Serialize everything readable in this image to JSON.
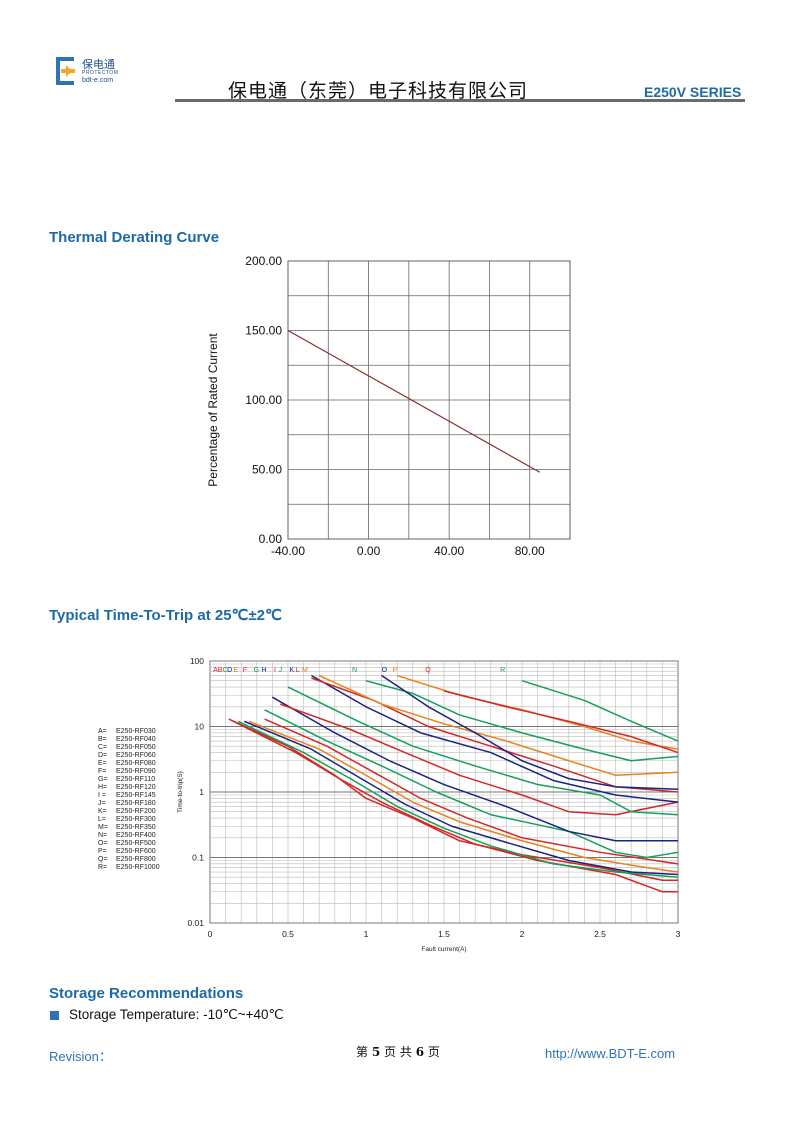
{
  "header": {
    "logo_cn": "保电通",
    "logo_en1": "PROTECTOM",
    "logo_en2": "bdt-e.com",
    "company": "保电通（东莞）电子科技有限公司",
    "series": "E250V SERIES",
    "accent_color": "#1d6aa5"
  },
  "sections": {
    "thermal_title": "Thermal Derating Curve",
    "trip_title": "Typical Time-To-Trip at 25℃±2℃",
    "storage_title": "Storage Recommendations",
    "storage_item": "Storage Temperature: -10℃~+40℃"
  },
  "footer": {
    "revision": "Revision：",
    "page_prefix": "第",
    "page_num": "5",
    "page_mid": "页 共",
    "page_total": "6",
    "page_suffix": "页",
    "url": "http://www.BDT-E.com"
  },
  "chart_data": [
    {
      "type": "line",
      "title": "",
      "xlabel": "",
      "ylabel": "Percentage of Rated Current",
      "xlim": [
        -40,
        100
      ],
      "ylim": [
        0,
        200
      ],
      "x_ticks": [
        "-40.00",
        "0.00",
        "40.00",
        "80.00"
      ],
      "y_ticks": [
        "0.00",
        "50.00",
        "100.00",
        "150.00",
        "200.00"
      ],
      "grid": true,
      "series": [
        {
          "color": "#8b2e2e",
          "x": [
            -40,
            85
          ],
          "y": [
            150,
            48
          ]
        }
      ]
    },
    {
      "type": "line",
      "title": "",
      "xlabel": "Fault current(A)",
      "ylabel": "Time-to-trip(S)",
      "xlim": [
        0,
        3
      ],
      "ylim_log": [
        0.01,
        100
      ],
      "x_ticks": [
        "0",
        "0.5",
        "1",
        "1.5",
        "2",
        "2.5",
        "3"
      ],
      "y_ticks": [
        "0.01",
        "0.1",
        "1",
        "10",
        "100"
      ],
      "grid": true,
      "top_letters": [
        {
          "t": "A",
          "x": 0.02
        },
        {
          "t": "B",
          "x": 0.05
        },
        {
          "t": "C",
          "x": 0.08
        },
        {
          "t": "D",
          "x": 0.11
        },
        {
          "t": "E",
          "x": 0.15
        },
        {
          "t": "F",
          "x": 0.21
        },
        {
          "t": "G",
          "x": 0.28
        },
        {
          "t": "H",
          "x": 0.33
        },
        {
          "t": "I",
          "x": 0.41
        },
        {
          "t": "J",
          "x": 0.44
        },
        {
          "t": "K",
          "x": 0.51
        },
        {
          "t": "L",
          "x": 0.55
        },
        {
          "t": "M",
          "x": 0.59
        },
        {
          "t": "N",
          "x": 0.91
        },
        {
          "t": "O",
          "x": 1.1
        },
        {
          "t": "P",
          "x": 1.17
        },
        {
          "t": "Q",
          "x": 1.38
        },
        {
          "t": "R",
          "x": 1.86
        }
      ],
      "legend": [
        {
          "key": "A=",
          "name": "E250-RF030"
        },
        {
          "key": "B=",
          "name": "E250-RF040"
        },
        {
          "key": "C=",
          "name": "E250-RF050"
        },
        {
          "key": "D=",
          "name": "E250-RF060"
        },
        {
          "key": "E=",
          "name": "E250-RF080"
        },
        {
          "key": "F=",
          "name": "E250-RF090"
        },
        {
          "key": "G=",
          "name": "E250-RF110"
        },
        {
          "key": "H=",
          "name": "E250-RF120"
        },
        {
          "key": "I =",
          "name": "E250-RF145"
        },
        {
          "key": "J=",
          "name": "E250-RF180"
        },
        {
          "key": "K=",
          "name": "E250-RF200"
        },
        {
          "key": "L=",
          "name": "E250-RF300"
        },
        {
          "key": "M=",
          "name": "E250-RF350"
        },
        {
          "key": "N=",
          "name": "E250-RF400"
        },
        {
          "key": "O=",
          "name": "E250-RF500"
        },
        {
          "key": "P=",
          "name": "E250-RF600"
        },
        {
          "key": "Q=",
          "name": "E250-RF800"
        },
        {
          "key": "R=",
          "name": "E250-RF1000"
        }
      ],
      "series": [
        {
          "color": "#d62626",
          "points": [
            [
              0.12,
              13
            ],
            [
              0.5,
              5
            ],
            [
              0.8,
              1.8
            ],
            [
              1.0,
              0.8
            ],
            [
              1.3,
              0.4
            ],
            [
              1.6,
              0.18
            ],
            [
              2.0,
              0.11
            ],
            [
              2.5,
              0.07
            ],
            [
              2.9,
              0.045
            ],
            [
              3.0,
              0.045
            ]
          ]
        },
        {
          "color": "#d62626",
          "points": [
            [
              0.15,
              12
            ],
            [
              0.55,
              4
            ],
            [
              0.85,
              1.5
            ],
            [
              1.1,
              0.7
            ],
            [
              1.4,
              0.32
            ],
            [
              1.7,
              0.16
            ],
            [
              2.1,
              0.09
            ],
            [
              2.6,
              0.055
            ],
            [
              2.9,
              0.03
            ],
            [
              3.0,
              0.03
            ]
          ]
        },
        {
          "color": "#14a05a",
          "points": [
            [
              0.18,
              12
            ],
            [
              0.6,
              4
            ],
            [
              0.9,
              1.6
            ],
            [
              1.2,
              0.6
            ],
            [
              1.5,
              0.28
            ],
            [
              1.8,
              0.15
            ],
            [
              2.2,
              0.08
            ],
            [
              2.6,
              0.06
            ],
            [
              3.0,
              0.05
            ]
          ]
        },
        {
          "color": "#1a237e",
          "points": [
            [
              0.22,
              12
            ],
            [
              0.65,
              4.5
            ],
            [
              0.95,
              1.7
            ],
            [
              1.25,
              0.65
            ],
            [
              1.55,
              0.3
            ],
            [
              1.9,
              0.17
            ],
            [
              2.3,
              0.09
            ],
            [
              2.7,
              0.06
            ],
            [
              3.0,
              0.055
            ]
          ]
        },
        {
          "color": "#e8821a",
          "points": [
            [
              0.25,
              12
            ],
            [
              0.7,
              4.5
            ],
            [
              1.0,
              1.8
            ],
            [
              1.3,
              0.7
            ],
            [
              1.6,
              0.35
            ],
            [
              2.0,
              0.18
            ],
            [
              2.4,
              0.1
            ],
            [
              2.8,
              0.07
            ],
            [
              3.0,
              0.06
            ]
          ]
        },
        {
          "color": "#d62626",
          "points": [
            [
              0.35,
              13
            ],
            [
              0.75,
              5
            ],
            [
              1.05,
              2
            ],
            [
              1.35,
              0.8
            ],
            [
              1.65,
              0.4
            ],
            [
              2.0,
              0.2
            ],
            [
              2.5,
              0.12
            ],
            [
              3.0,
              0.08
            ]
          ]
        },
        {
          "color": "#14a05a",
          "points": [
            [
              0.35,
              18
            ],
            [
              0.75,
              6
            ],
            [
              1.1,
              2.5
            ],
            [
              1.45,
              1
            ],
            [
              1.8,
              0.45
            ],
            [
              2.3,
              0.25
            ],
            [
              2.6,
              0.12
            ],
            [
              2.8,
              0.1
            ],
            [
              3.0,
              0.12
            ]
          ]
        },
        {
          "color": "#1a237e",
          "points": [
            [
              0.4,
              28
            ],
            [
              0.8,
              8
            ],
            [
              1.15,
              3
            ],
            [
              1.5,
              1.3
            ],
            [
              1.9,
              0.6
            ],
            [
              2.3,
              0.25
            ],
            [
              2.6,
              0.18
            ],
            [
              3.0,
              0.18
            ]
          ]
        },
        {
          "color": "#d62626",
          "points": [
            [
              0.45,
              22
            ],
            [
              0.9,
              9
            ],
            [
              1.25,
              4
            ],
            [
              1.6,
              1.8
            ],
            [
              2.0,
              0.9
            ],
            [
              2.3,
              0.5
            ],
            [
              2.6,
              0.45
            ],
            [
              3.0,
              0.7
            ]
          ]
        },
        {
          "color": "#14a05a",
          "points": [
            [
              0.5,
              40
            ],
            [
              0.95,
              12
            ],
            [
              1.3,
              5
            ],
            [
              1.7,
              2.5
            ],
            [
              2.1,
              1.3
            ],
            [
              2.5,
              0.9
            ],
            [
              2.7,
              0.5
            ],
            [
              3.0,
              0.45
            ]
          ]
        },
        {
          "color": "#1a237e",
          "points": [
            [
              0.65,
              60
            ],
            [
              1.0,
              20
            ],
            [
              1.35,
              8
            ],
            [
              1.8,
              4
            ],
            [
              2.2,
              1.5
            ],
            [
              2.6,
              0.9
            ],
            [
              3.0,
              0.7
            ]
          ]
        },
        {
          "color": "#d62626",
          "points": [
            [
              0.65,
              55
            ],
            [
              1.05,
              25
            ],
            [
              1.4,
              10
            ],
            [
              1.8,
              5
            ],
            [
              2.2,
              2.5
            ],
            [
              2.6,
              1.2
            ],
            [
              3.0,
              1.0
            ]
          ]
        },
        {
          "color": "#e8821a",
          "points": [
            [
              0.7,
              60
            ],
            [
              1.1,
              22
            ],
            [
              1.5,
              11
            ],
            [
              1.9,
              6
            ],
            [
              2.3,
              3
            ],
            [
              2.6,
              1.8
            ],
            [
              3.0,
              2.0
            ]
          ]
        },
        {
          "color": "#14a05a",
          "points": [
            [
              1.0,
              50
            ],
            [
              1.3,
              32
            ],
            [
              1.6,
              15
            ],
            [
              2.0,
              8
            ],
            [
              2.4,
              4.5
            ],
            [
              2.7,
              3
            ],
            [
              3.0,
              3.5
            ]
          ]
        },
        {
          "color": "#1a237e",
          "points": [
            [
              1.1,
              60
            ],
            [
              1.4,
              20
            ],
            [
              1.7,
              8
            ],
            [
              2.0,
              3
            ],
            [
              2.3,
              1.6
            ],
            [
              2.6,
              1.2
            ],
            [
              3.0,
              1.1
            ]
          ]
        },
        {
          "color": "#e8821a",
          "points": [
            [
              1.2,
              60
            ],
            [
              1.6,
              30
            ],
            [
              2.0,
              18
            ],
            [
              2.4,
              10
            ],
            [
              2.7,
              6
            ],
            [
              3.0,
              4.5
            ]
          ]
        },
        {
          "color": "#d62626",
          "points": [
            [
              1.5,
              35
            ],
            [
              1.9,
              20
            ],
            [
              2.3,
              12
            ],
            [
              2.7,
              7
            ],
            [
              3.0,
              4
            ]
          ]
        },
        {
          "color": "#14a05a",
          "points": [
            [
              2.0,
              50
            ],
            [
              2.4,
              25
            ],
            [
              2.7,
              12
            ],
            [
              3.0,
              6
            ]
          ]
        }
      ]
    }
  ]
}
